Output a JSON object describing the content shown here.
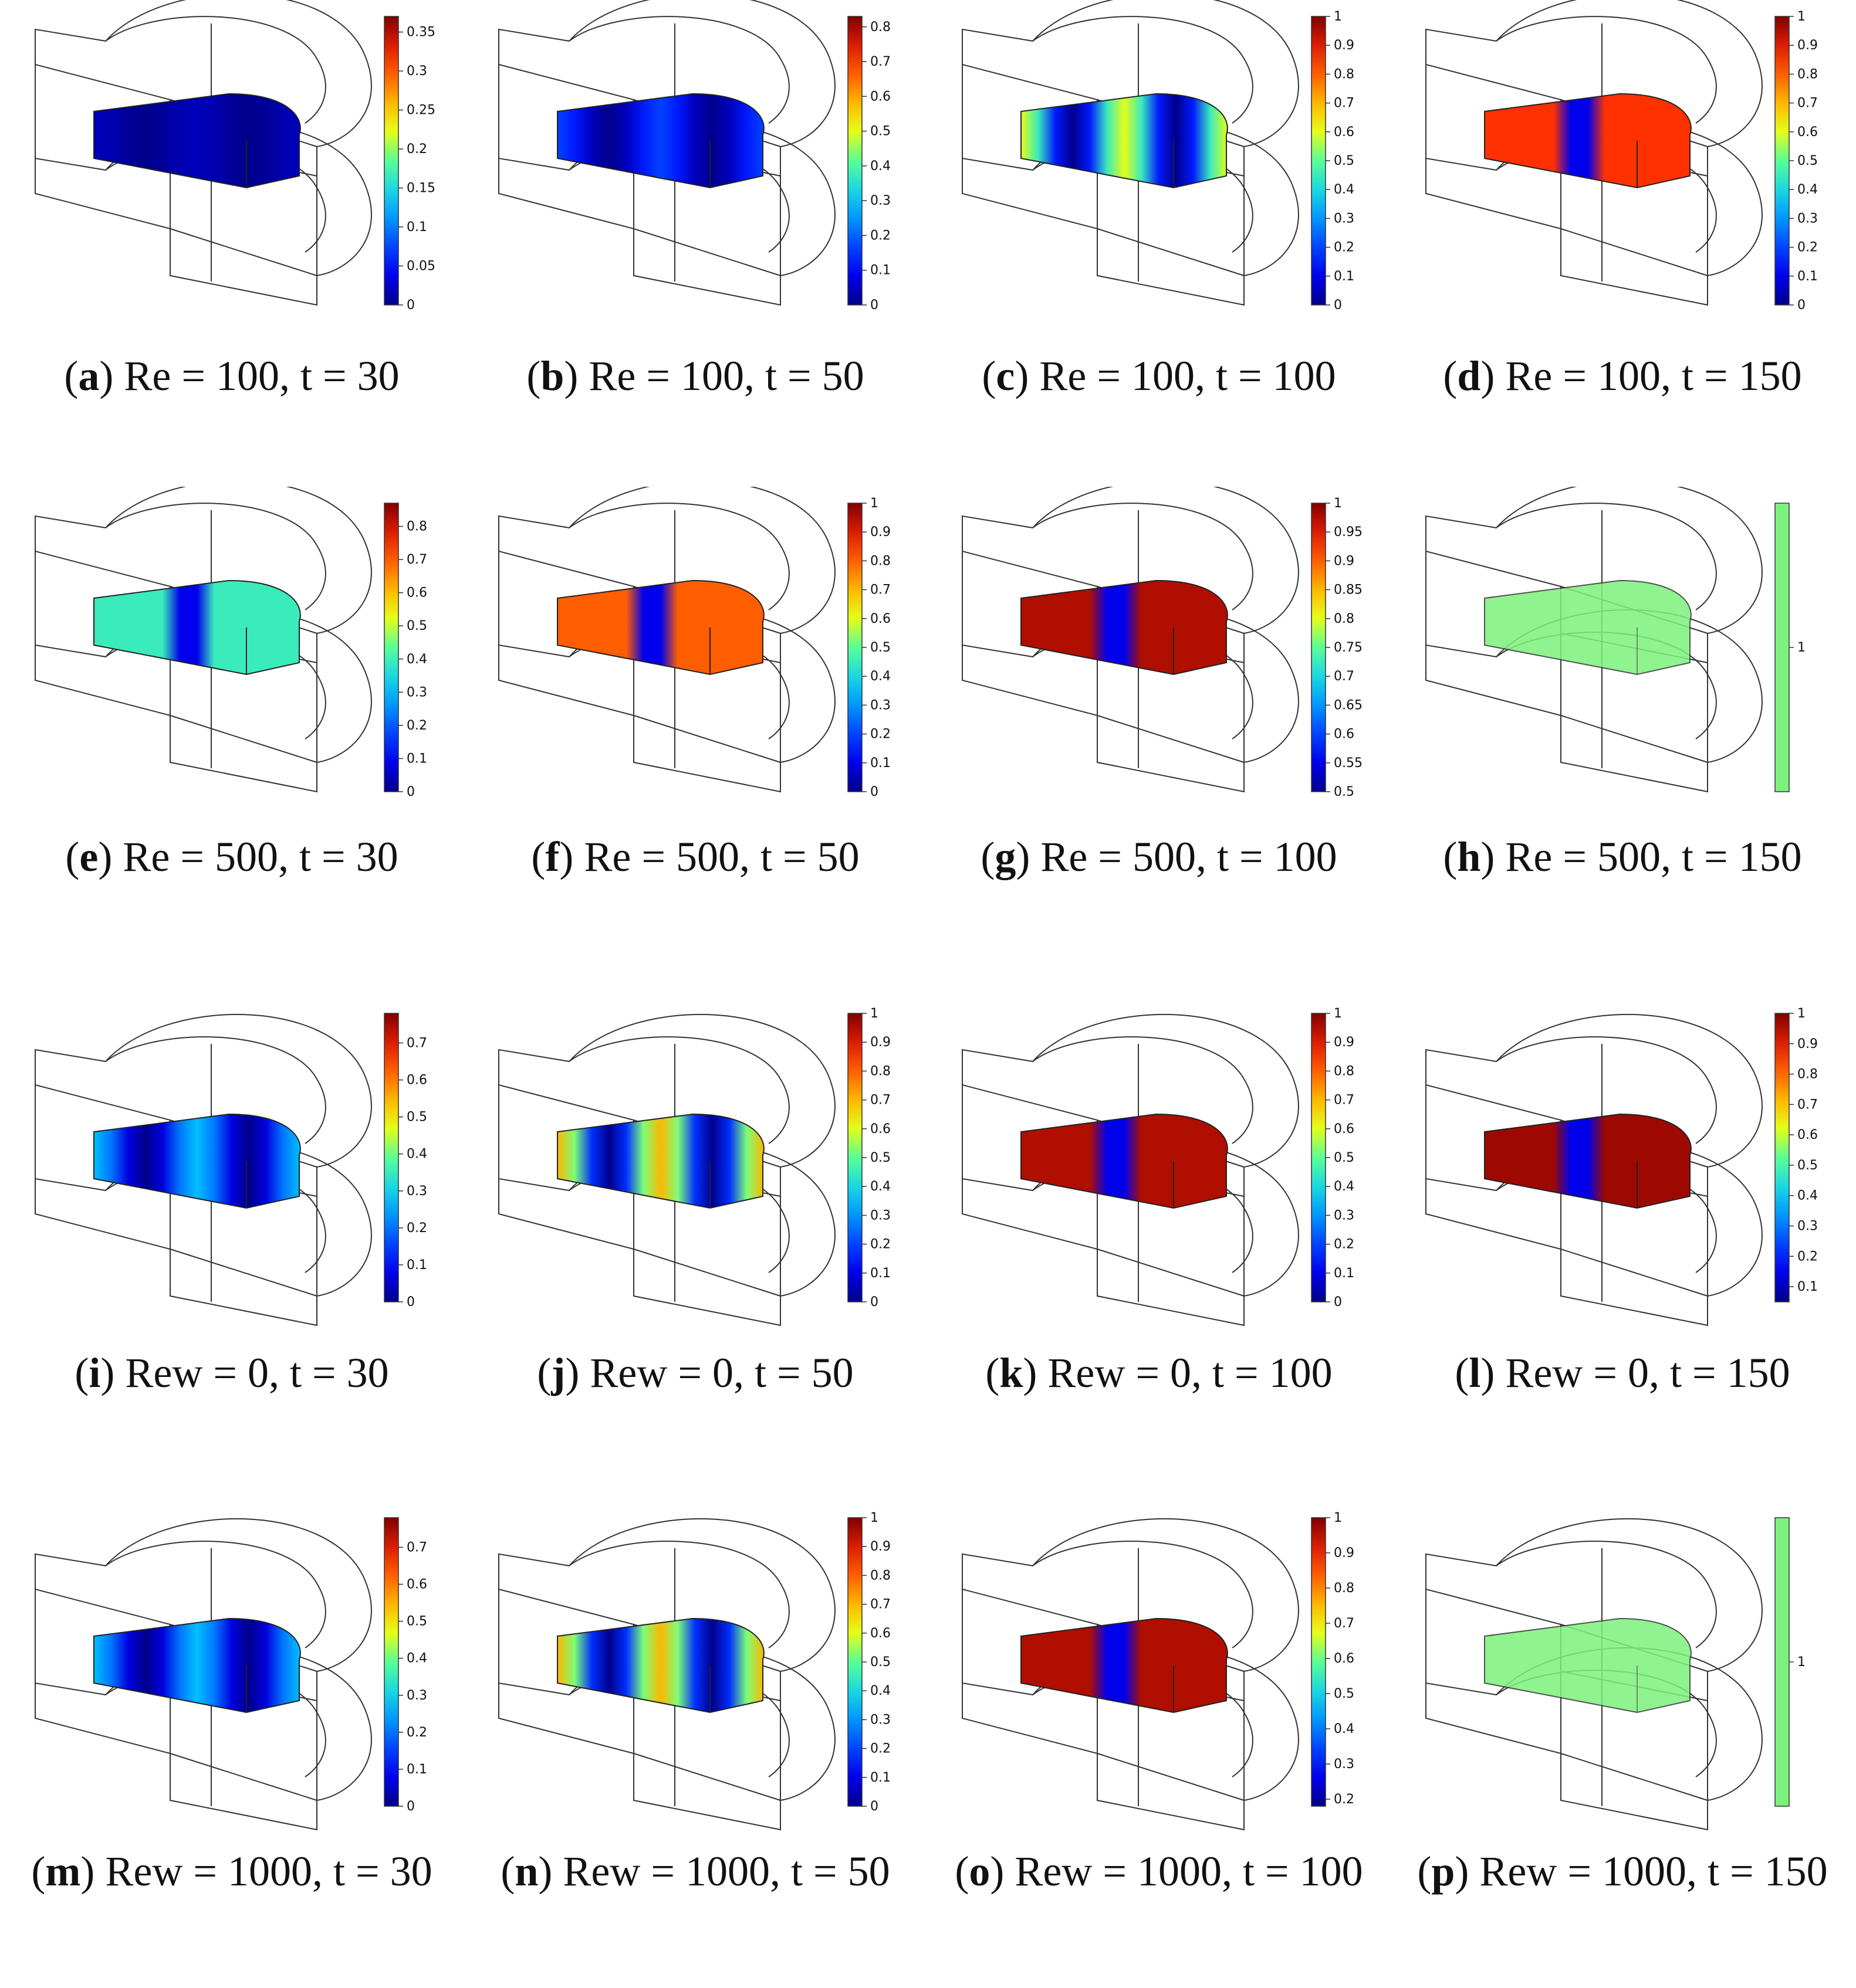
{
  "figure": {
    "panels": [
      {
        "letter": "a",
        "param": "Re",
        "value": "100",
        "t": "30",
        "colorbar": {
          "kind": "gradient",
          "ticks": [
            "0",
            "0.05",
            "0.1",
            "0.15",
            "0.2",
            "0.25",
            "0.3",
            "0.35"
          ],
          "min": 0,
          "max": 0.37
        },
        "field": {
          "reach": 0.05,
          "shape": "ring"
        }
      },
      {
        "letter": "b",
        "param": "Re",
        "value": "100",
        "t": "50",
        "colorbar": {
          "kind": "gradient",
          "ticks": [
            "0",
            "0.1",
            "0.2",
            "0.3",
            "0.4",
            "0.5",
            "0.6",
            "0.7",
            "0.8"
          ],
          "min": 0,
          "max": 0.83
        },
        "field": {
          "reach": 0.2,
          "shape": "ring"
        }
      },
      {
        "letter": "c",
        "param": "Re",
        "value": "100",
        "t": "100",
        "colorbar": {
          "kind": "gradient",
          "ticks": [
            "0",
            "0.1",
            "0.2",
            "0.3",
            "0.4",
            "0.5",
            "0.6",
            "0.7",
            "0.8",
            "0.9",
            "1"
          ],
          "min": 0,
          "max": 1
        },
        "field": {
          "reach": 0.6,
          "shape": "ring"
        }
      },
      {
        "letter": "d",
        "param": "Re",
        "value": "100",
        "t": "150",
        "colorbar": {
          "kind": "gradient",
          "ticks": [
            "0",
            "0.1",
            "0.2",
            "0.3",
            "0.4",
            "0.5",
            "0.6",
            "0.7",
            "0.8",
            "0.9",
            "1"
          ],
          "min": 0,
          "max": 1
        },
        "field": {
          "reach": 0.85,
          "shape": "front"
        }
      },
      {
        "letter": "e",
        "param": "Re",
        "value": "500",
        "t": "30",
        "colorbar": {
          "kind": "gradient",
          "ticks": [
            "0",
            "0.1",
            "0.2",
            "0.3",
            "0.4",
            "0.5",
            "0.6",
            "0.7",
            "0.8"
          ],
          "min": 0,
          "max": 0.87
        },
        "field": {
          "reach": 0.45,
          "shape": "front"
        }
      },
      {
        "letter": "f",
        "param": "Re",
        "value": "500",
        "t": "50",
        "colorbar": {
          "kind": "gradient",
          "ticks": [
            "0",
            "0.1",
            "0.2",
            "0.3",
            "0.4",
            "0.5",
            "0.6",
            "0.7",
            "0.8",
            "0.9",
            "1"
          ],
          "min": 0,
          "max": 1
        },
        "field": {
          "reach": 0.8,
          "shape": "front"
        }
      },
      {
        "letter": "g",
        "param": "Re",
        "value": "500",
        "t": "100",
        "colorbar": {
          "kind": "gradient",
          "ticks": [
            "0.5",
            "0.55",
            "0.6",
            "0.65",
            "0.7",
            "0.75",
            "0.8",
            "0.85",
            "0.9",
            "0.95",
            "1"
          ],
          "min": 0.5,
          "max": 1
        },
        "field": {
          "reach": 0.95,
          "shape": "front"
        }
      },
      {
        "letter": "h",
        "param": "Re",
        "value": "500",
        "t": "150",
        "colorbar": {
          "kind": "uniform",
          "ticks": [
            "1"
          ],
          "color": "#7cf27c"
        },
        "field": {
          "reach": 1,
          "shape": "uniform"
        }
      },
      {
        "letter": "i",
        "param": "Rew",
        "value": "0",
        "t": "30",
        "colorbar": {
          "kind": "gradient",
          "ticks": [
            "0",
            "0.1",
            "0.2",
            "0.3",
            "0.4",
            "0.5",
            "0.6",
            "0.7"
          ],
          "min": 0,
          "max": 0.78
        },
        "field": {
          "reach": 0.35,
          "shape": "ring"
        }
      },
      {
        "letter": "j",
        "param": "Rew",
        "value": "0",
        "t": "50",
        "colorbar": {
          "kind": "gradient",
          "ticks": [
            "0",
            "0.1",
            "0.2",
            "0.3",
            "0.4",
            "0.5",
            "0.6",
            "0.7",
            "0.8",
            "0.9",
            "1"
          ],
          "min": 0,
          "max": 1
        },
        "field": {
          "reach": 0.7,
          "shape": "ring"
        }
      },
      {
        "letter": "k",
        "param": "Rew",
        "value": "0",
        "t": "100",
        "colorbar": {
          "kind": "gradient",
          "ticks": [
            "0",
            "0.1",
            "0.2",
            "0.3",
            "0.4",
            "0.5",
            "0.6",
            "0.7",
            "0.8",
            "0.9",
            "1"
          ],
          "min": 0,
          "max": 1
        },
        "field": {
          "reach": 0.95,
          "shape": "front"
        }
      },
      {
        "letter": "l",
        "param": "Rew",
        "value": "0",
        "t": "150",
        "colorbar": {
          "kind": "gradient",
          "ticks": [
            "0.1",
            "0.2",
            "0.3",
            "0.4",
            "0.5",
            "0.6",
            "0.7",
            "0.8",
            "0.9",
            "1"
          ],
          "min": 0.05,
          "max": 1
        },
        "field": {
          "reach": 0.97,
          "shape": "front"
        }
      },
      {
        "letter": "m",
        "param": "Rew",
        "value": "1000",
        "t": "30",
        "colorbar": {
          "kind": "gradient",
          "ticks": [
            "0",
            "0.1",
            "0.2",
            "0.3",
            "0.4",
            "0.5",
            "0.6",
            "0.7"
          ],
          "min": 0,
          "max": 0.78
        },
        "field": {
          "reach": 0.35,
          "shape": "ring"
        }
      },
      {
        "letter": "n",
        "param": "Rew",
        "value": "1000",
        "t": "50",
        "colorbar": {
          "kind": "gradient",
          "ticks": [
            "0",
            "0.1",
            "0.2",
            "0.3",
            "0.4",
            "0.5",
            "0.6",
            "0.7",
            "0.8",
            "0.9",
            "1"
          ],
          "min": 0,
          "max": 1
        },
        "field": {
          "reach": 0.7,
          "shape": "ring"
        }
      },
      {
        "letter": "o",
        "param": "Rew",
        "value": "1000",
        "t": "100",
        "colorbar": {
          "kind": "gradient",
          "ticks": [
            "0.2",
            "0.3",
            "0.4",
            "0.5",
            "0.6",
            "0.7",
            "0.8",
            "0.9",
            "1"
          ],
          "min": 0.18,
          "max": 1
        },
        "field": {
          "reach": 0.95,
          "shape": "front"
        }
      },
      {
        "letter": "p",
        "param": "Rew",
        "value": "1000",
        "t": "150",
        "colorbar": {
          "kind": "uniform",
          "ticks": [
            "1"
          ],
          "color": "#7cf27c"
        },
        "field": {
          "reach": 1,
          "shape": "uniform"
        }
      }
    ]
  }
}
